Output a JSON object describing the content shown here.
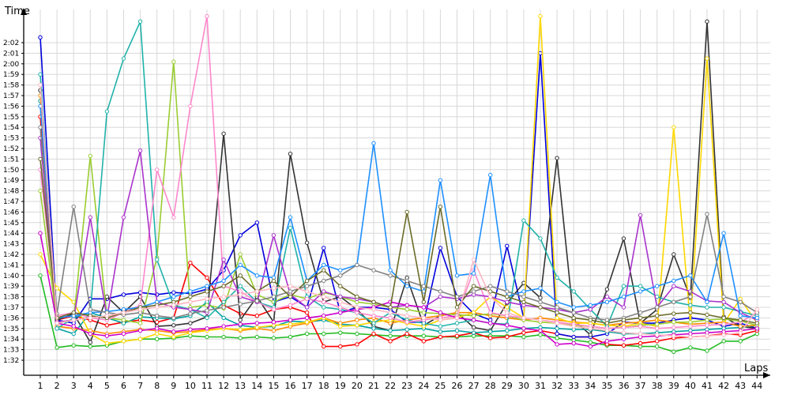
{
  "chart_data": {
    "type": "line",
    "title": "",
    "xlabel": "Laps",
    "ylabel": "Time",
    "x": [
      1,
      2,
      3,
      4,
      5,
      6,
      7,
      8,
      9,
      10,
      11,
      12,
      13,
      14,
      15,
      16,
      17,
      18,
      19,
      20,
      21,
      22,
      23,
      24,
      25,
      26,
      27,
      28,
      29,
      30,
      31,
      32,
      33,
      34,
      35,
      36,
      37,
      38,
      39,
      40,
      41,
      42,
      43,
      44
    ],
    "x_tick_labels": [
      "1",
      "2",
      "3",
      "4",
      "5",
      "6",
      "7",
      "8",
      "9",
      "10",
      "11",
      "12",
      "13",
      "14",
      "15",
      "16",
      "17",
      "18",
      "19",
      "20",
      "21",
      "22",
      "23",
      "24",
      "25",
      "26",
      "27",
      "28",
      "29",
      "30",
      "31",
      "32",
      "33",
      "34",
      "35",
      "36",
      "37",
      "38",
      "39",
      "40",
      "41",
      "42",
      "43",
      "44"
    ],
    "y_tick_labels": [
      "1:32",
      "1:33",
      "1:34",
      "1:35",
      "1:36",
      "1:37",
      "1:38",
      "1:39",
      "1:40",
      "1:41",
      "1:42",
      "1:43",
      "1:44",
      "1:45",
      "1:46",
      "1:47",
      "1:48",
      "1:49",
      "1:50",
      "1:51",
      "1:52",
      "1:53",
      "1:54",
      "1:55",
      "1:56",
      "1:57",
      "1:58",
      "1:59",
      "2:00",
      "2:01",
      "2:02"
    ],
    "y_ticks_seconds": [
      92,
      93,
      94,
      95,
      96,
      97,
      98,
      99,
      100,
      101,
      102,
      103,
      104,
      105,
      106,
      107,
      108,
      109,
      110,
      111,
      112,
      113,
      114,
      115,
      116,
      117,
      118,
      119,
      120,
      121,
      122
    ],
    "y_unit": "seconds",
    "ylim": [
      91.2,
      124.8
    ],
    "grid": true,
    "legend": "none",
    "series": [
      {
        "color": "#22bb22",
        "values": [
          100,
          93.2,
          93.4,
          93.3,
          93.4,
          93.8,
          94.0,
          94.0,
          94.1,
          94.3,
          94.2,
          94.2,
          94.1,
          94.2,
          94.1,
          94.2,
          94.5,
          94.5,
          94.6,
          94.5,
          94.4,
          94.3,
          94.3,
          94.3,
          94.2,
          94.2,
          94.3,
          94.3,
          94.3,
          94.2,
          94.4,
          94.1,
          93.9,
          93.7,
          93.4,
          93.4,
          93.3,
          93.3,
          92.8,
          93.2,
          92.9,
          93.8,
          93.8,
          94.5
        ]
      },
      {
        "color": "#ff0000",
        "values": [
          115,
          95.8,
          96.2,
          95.8,
          95.3,
          95.6,
          95.8,
          95.6,
          96.0,
          101.2,
          99.8,
          97.2,
          96.4,
          96.2,
          96.8,
          97.0,
          96.5,
          93.3,
          93.3,
          93.5,
          94.5,
          93.8,
          94.5,
          93.8,
          94.2,
          94.3,
          94.6,
          94.1,
          94.2,
          94.6,
          94.8,
          94.5,
          94.2,
          94.2,
          93.5,
          93.4,
          93.6,
          93.8,
          94.1,
          94.2,
          94.3,
          94.5,
          94.4,
          94.8
        ]
      },
      {
        "color": "#0000dd",
        "values": [
          122.5,
          95.8,
          95.5,
          97.8,
          97.8,
          98.2,
          98.4,
          98.2,
          98.4,
          98.3,
          98.7,
          100.5,
          103.8,
          105.0,
          97.5,
          98.0,
          97.0,
          102.6,
          96.5,
          97.0,
          97.0,
          96.8,
          95.6,
          95.6,
          102.6,
          98.0,
          96.4,
          95.8,
          102.8,
          96.0,
          121.0,
          94.5,
          94.2,
          94.2,
          94.5,
          95.6,
          95.5,
          95.5,
          95.8,
          96.0,
          95.8,
          95.2,
          95.5,
          95.0
        ]
      },
      {
        "color": "#333333",
        "values": [
          117.5,
          95.8,
          96.4,
          93.7,
          98.0,
          96.5,
          98.0,
          95.2,
          95.3,
          95.5,
          96.1,
          113.4,
          95.8,
          98.0,
          95.6,
          111.5,
          103.1,
          97.5,
          98.0,
          96.8,
          95.2,
          94.8,
          99.8,
          95.3,
          96.2,
          96.5,
          95.1,
          94.8,
          97.4,
          99.3,
          97.9,
          111.1,
          95.8,
          94.4,
          98.7,
          103.5,
          95.5,
          96.8,
          102.0,
          97.9,
          124.0,
          96.1,
          95.2,
          95.0
        ]
      },
      {
        "color": "#00a0a0",
        "values": [
          116.5,
          95.0,
          94.5,
          96.5,
          96.0,
          95.5,
          96.1,
          96.0,
          95.9,
          96.2,
          97.5,
          96.0,
          95.3,
          95.1,
          95.2,
          95.7,
          95.6,
          95.8,
          95.4,
          95.3,
          95.0,
          94.8,
          94.9,
          95.0,
          94.7,
          94.8,
          94.6,
          94.7,
          94.8,
          95.0,
          95.1,
          95.0,
          94.9,
          94.9,
          94.7,
          94.5,
          94.5,
          94.6,
          94.7,
          94.8,
          94.9,
          95.0,
          95.1,
          95.3
        ]
      },
      {
        "color": "#ff8800",
        "values": [
          117,
          95.2,
          95.0,
          94.8,
          94.5,
          94.7,
          94.9,
          94.8,
          94.6,
          94.7,
          94.9,
          95.0,
          94.8,
          95.0,
          94.8,
          95.2,
          95.5,
          96.0,
          95.5,
          95.8,
          96.0,
          95.5,
          95.8,
          96.0,
          96.2,
          96.5,
          96.5,
          96.2,
          96.0,
          95.8,
          96.0,
          95.8,
          95.6,
          95.5,
          95.3,
          95.5,
          95.6,
          95.8,
          95.6,
          95.4,
          95.5,
          95.6,
          95.2,
          95.3
        ]
      },
      {
        "color": "#ffd700",
        "values": [
          102,
          98.8,
          97.5,
          94.5,
          93.6,
          93.8,
          94.0,
          94.5,
          94.2,
          94.6,
          94.8,
          95.0,
          94.9,
          95.1,
          95.3,
          95.4,
          95.6,
          96.0,
          95.2,
          95.3,
          95.6,
          95.8,
          95.5,
          95.2,
          95.8,
          96.0,
          96.5,
          98.0,
          97.0,
          96.0,
          124.5,
          96.0,
          95.5,
          95.5,
          95.3,
          95.2,
          95.5,
          95.2,
          114.0,
          95.4,
          120.5,
          95.5,
          97.8,
          95.5
        ]
      },
      {
        "color": "#9acd32",
        "values": [
          108,
          95.5,
          95.8,
          111.3,
          96.0,
          95.8,
          95.5,
          101.7,
          120.2,
          97.0,
          97.2,
          96.9,
          102.0,
          98.2,
          97.5,
          98.2,
          97.8,
          98.4,
          98.0,
          97.5,
          97.3,
          97.0,
          96.8,
          96.5,
          96.4,
          96.3,
          96.2,
          96.4,
          96.2,
          95.8,
          95.6,
          95.5,
          95.3,
          95.2,
          95.0,
          95.1,
          95.3,
          95.4,
          95.6,
          95.6,
          95.8,
          95.9,
          95.7,
          95.3
        ]
      },
      {
        "color": "#20b2aa",
        "values": [
          119,
          95.0,
          96.0,
          96.5,
          115.5,
          120.5,
          124.0,
          101.5,
          97.2,
          96.8,
          96.0,
          97.5,
          99.0,
          97.5,
          97.0,
          104.5,
          98.0,
          97.0,
          96.8,
          96.5,
          95.5,
          96.5,
          95.8,
          95.5,
          95.2,
          95.5,
          95.8,
          95.5,
          95.4,
          105.2,
          103.5,
          99.8,
          98.5,
          96.8,
          95.2,
          99.0,
          99.0,
          98.0,
          97.5,
          97.2,
          97.0,
          97.0,
          96.6,
          96.2
        ]
      },
      {
        "color": "#ff88cc",
        "values": [
          110,
          96.2,
          96.5,
          96.0,
          95.8,
          96.5,
          97.2,
          110.0,
          105.5,
          116.0,
          124.5,
          99.0,
          98.5,
          97.5,
          96.8,
          97.2,
          97.8,
          97.5,
          97.0,
          96.5,
          96.2,
          96.0,
          95.6,
          95.8,
          96.0,
          96.2,
          100.5,
          96.5,
          96.2,
          96.0,
          95.8,
          95.6,
          95.4,
          95.2,
          95.0,
          95.1,
          95.2,
          95.0,
          95.1,
          95.2,
          95.3,
          95.4,
          95.6,
          96.5
        ]
      },
      {
        "color": "#aa33cc",
        "values": [
          113,
          95.6,
          95.8,
          105.5,
          96.0,
          105.5,
          111.8,
          97.5,
          97.0,
          96.8,
          96.5,
          101.5,
          98.0,
          97.5,
          103.8,
          98.2,
          97.0,
          98.5,
          98.0,
          97.8,
          97.5,
          97.0,
          97.2,
          97.0,
          98.0,
          97.8,
          98.2,
          98.0,
          97.5,
          97.2,
          97.0,
          96.8,
          96.5,
          96.8,
          98.0,
          97.0,
          105.7,
          97.0,
          99.0,
          98.5,
          97.6,
          97.5,
          96.5,
          95.8
        ]
      },
      {
        "color": "#1e90ff",
        "values": [
          116,
          96.0,
          96.2,
          96.5,
          96.6,
          96.8,
          97.0,
          97.5,
          98.0,
          98.5,
          99.0,
          99.5,
          101.0,
          100.0,
          99.8,
          105.5,
          99.5,
          101.0,
          100.5,
          101.0,
          112.5,
          100.5,
          99.0,
          98.5,
          109.0,
          100.0,
          100.2,
          109.5,
          98.0,
          98.5,
          98.8,
          97.5,
          97.0,
          97.2,
          97.5,
          98.0,
          98.5,
          99.0,
          99.5,
          100.0,
          97.5,
          104.0,
          96.2,
          96.0
        ]
      },
      {
        "color": "#cc00cc",
        "values": [
          104,
          95.5,
          95.2,
          94.5,
          94.3,
          94.5,
          94.8,
          95.0,
          94.7,
          94.9,
          95.0,
          95.2,
          95.4,
          95.5,
          95.6,
          95.8,
          96.0,
          96.2,
          96.5,
          96.8,
          97.0,
          97.5,
          97.2,
          97.0,
          96.5,
          96.0,
          95.8,
          95.5,
          95.3,
          95.0,
          94.8,
          93.5,
          93.6,
          93.3,
          93.8,
          94.0,
          94.2,
          94.3,
          94.4,
          94.5,
          94.6,
          94.7,
          94.8,
          95.0
        ]
      },
      {
        "color": "#808080",
        "values": [
          114,
          96.4,
          106.5,
          96.8,
          96.5,
          96.3,
          96.5,
          96.2,
          96.0,
          96.4,
          96.7,
          97.0,
          97.3,
          97.6,
          98.0,
          98.5,
          99.0,
          99.5,
          100.0,
          101.0,
          100.5,
          100.0,
          99.5,
          99.0,
          98.5,
          98.0,
          98.5,
          99.0,
          98.5,
          98.0,
          97.5,
          97.0,
          96.5,
          96.0,
          95.8,
          96.0,
          96.5,
          97.0,
          97.5,
          98.0,
          105.8,
          98.0,
          97.5,
          96.5
        ]
      },
      {
        "color": "#6b6b2a",
        "values": [
          111,
          96.0,
          96.5,
          96.2,
          96.0,
          96.5,
          97.0,
          97.2,
          97.5,
          98.0,
          98.5,
          99.0,
          100.0,
          98.5,
          99.5,
          98.0,
          99.5,
          100.5,
          99.0,
          98.0,
          97.5,
          97.0,
          106.0,
          97.5,
          106.5,
          97.0,
          99.0,
          98.5,
          98.0,
          97.5,
          97.0,
          96.5,
          96.0,
          95.8,
          95.5,
          95.8,
          96.0,
          96.2,
          96.4,
          96.5,
          96.3,
          96.0,
          95.8,
          95.5
        ]
      },
      {
        "color": "#ffb6c1",
        "values": [
          118,
          95.5,
          95.8,
          96.0,
          96.2,
          96.5,
          96.8,
          97.0,
          97.2,
          97.5,
          97.8,
          98.0,
          98.2,
          98.5,
          98.8,
          99.0,
          98.5,
          98.0,
          97.5,
          97.0,
          96.8,
          96.5,
          96.2,
          96.0,
          95.8,
          96.0,
          101.5,
          98.0,
          96.5,
          96.0,
          95.8,
          95.5,
          95.2,
          95.0,
          94.8,
          94.6,
          94.5,
          94.4,
          94.3,
          94.2,
          94.3,
          94.4,
          94.6,
          96.8
        ]
      }
    ]
  }
}
